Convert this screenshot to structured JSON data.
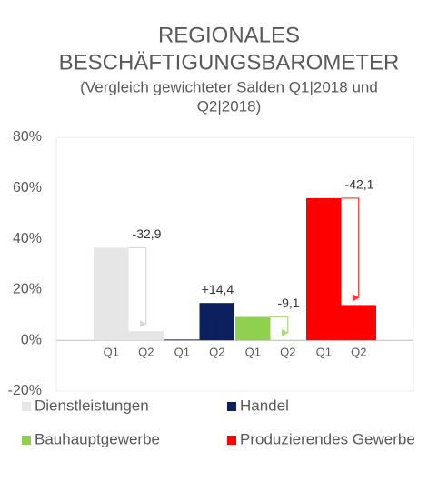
{
  "chart_data": {
    "type": "bar",
    "title": [
      "REGIONALES",
      "BESCHÄFTIGUNGSBAROMETER"
    ],
    "subtitle": [
      "(Vergleich gewichteter Salden Q1|2018 und",
      "Q2|2018)"
    ],
    "categories": [
      "Q1",
      "Q2"
    ],
    "series": [
      {
        "name": "Dienstleistungen",
        "color": "#e6e6e6",
        "arrow_color": "#d9d9d9",
        "values": [
          36.5,
          3.6
        ]
      },
      {
        "name": "Handel",
        "color": "#0c1f5e",
        "arrow_color": "#0c1f5e",
        "values": [
          0.3,
          14.7
        ]
      },
      {
        "name": "Bauhauptgewerbe",
        "color": "#8fd14f",
        "arrow_color": "#a9dc78",
        "values": [
          9.2,
          0.1
        ]
      },
      {
        "name": "Produzierendes Gewerbe",
        "color": "#ff0000",
        "arrow_color": "#ff3333",
        "values": [
          56,
          13.9
        ]
      }
    ],
    "changes": [
      -32.9,
      14.4,
      -9.1,
      -42.1
    ],
    "change_labels": [
      "-32,9",
      "+14,4",
      "-9,1",
      "-42,1"
    ],
    "ylim": [
      -20,
      80
    ],
    "yticks": [
      {
        "value": -20,
        "label": "-20%"
      },
      {
        "value": 0,
        "label": "0%"
      },
      {
        "value": 20,
        "label": "20%"
      },
      {
        "value": 40,
        "label": "40%"
      },
      {
        "value": 60,
        "label": "60%"
      },
      {
        "value": 80,
        "label": "80%"
      }
    ]
  }
}
